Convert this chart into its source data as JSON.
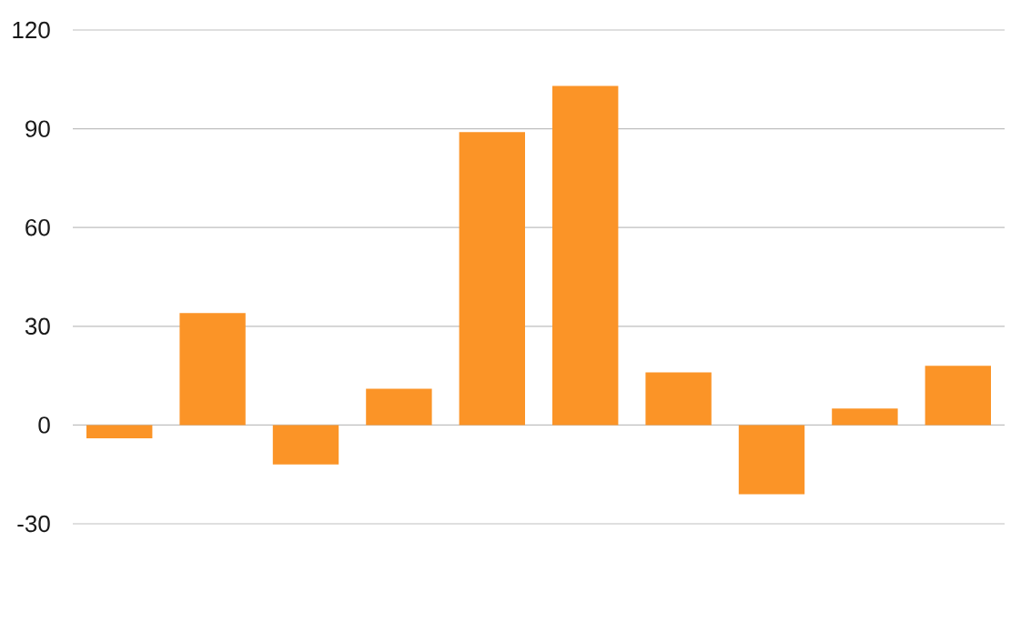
{
  "chart_data": {
    "type": "bar",
    "categories": [
      null,
      null,
      null,
      null,
      null,
      null,
      null,
      null,
      null,
      null
    ],
    "values": [
      -4,
      34,
      -12,
      11,
      89,
      103,
      16,
      -21,
      5,
      18
    ],
    "color": "#fb9427",
    "ylim": [
      -30,
      120
    ],
    "yticks": [
      -30,
      0,
      30,
      60,
      90,
      120
    ],
    "grid": "y",
    "tick_labels": "y"
  }
}
